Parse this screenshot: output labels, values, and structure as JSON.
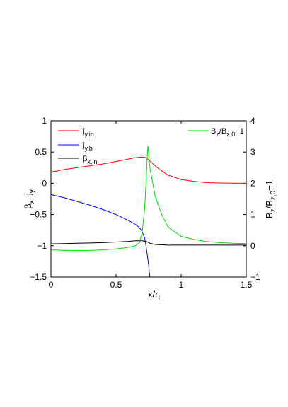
{
  "chart_data": {
    "type": "line",
    "xlabel": {
      "main": "x/r",
      "sub": "L"
    },
    "ylabel_left": {
      "b": "β",
      "bsub": "x",
      "sep": ", j",
      "jsub": "y"
    },
    "ylabel_right": {
      "b1": "B",
      "s1": "z",
      "slash": "/B",
      "s2": "z,0",
      "tail": "−1"
    },
    "xlim": [
      0,
      1.5
    ],
    "ylim_left": [
      -1.5,
      1
    ],
    "ylim_right": [
      -1,
      4
    ],
    "x_ticks": [
      "0",
      "0.5",
      "1",
      "1.5"
    ],
    "y_ticks_left": [
      "−1.5",
      "−1",
      "−0.5",
      "0",
      "0.5",
      "1"
    ],
    "y_ticks_right": [
      "−1",
      "0",
      "1",
      "2",
      "3",
      "4"
    ],
    "legend_left": [
      {
        "base": "j",
        "sub": "y,in",
        "color": "#ff0000"
      },
      {
        "base": "j",
        "sub": "y,b",
        "color": "#0000ff"
      },
      {
        "base": "β",
        "sub": "x,in",
        "color": "#000000"
      }
    ],
    "legend_right": {
      "b1": "B",
      "s1": "z",
      "slash": "/B",
      "s2": "z,0",
      "tail": "−1",
      "color": "#00dd00"
    },
    "series": [
      {
        "name": "j_y,in",
        "axis": "left",
        "color": "#ff0000",
        "x": [
          0,
          0.1,
          0.2,
          0.3,
          0.4,
          0.5,
          0.6,
          0.65,
          0.7,
          0.73,
          0.76,
          0.8,
          0.85,
          0.9,
          1.0,
          1.1,
          1.2,
          1.3,
          1.4,
          1.5
        ],
        "y": [
          0.18,
          0.22,
          0.25,
          0.28,
          0.31,
          0.35,
          0.39,
          0.41,
          0.42,
          0.41,
          0.36,
          0.28,
          0.2,
          0.13,
          0.06,
          0.03,
          0.01,
          0.005,
          0.002,
          0.0
        ]
      },
      {
        "name": "j_y,b",
        "axis": "left",
        "color": "#0000ff",
        "x": [
          0,
          0.1,
          0.2,
          0.3,
          0.4,
          0.5,
          0.55,
          0.6,
          0.65,
          0.68,
          0.7,
          0.72,
          0.73,
          0.74,
          0.75,
          0.755,
          0.76
        ],
        "y": [
          -0.18,
          -0.23,
          -0.29,
          -0.35,
          -0.42,
          -0.5,
          -0.55,
          -0.6,
          -0.66,
          -0.71,
          -0.77,
          -0.88,
          -1.0,
          -1.15,
          -1.3,
          -1.42,
          -1.5
        ]
      },
      {
        "name": "β_x,in",
        "axis": "left",
        "color": "#000000",
        "x": [
          0,
          0.1,
          0.2,
          0.3,
          0.4,
          0.5,
          0.6,
          0.65,
          0.7,
          0.73,
          0.76,
          0.8,
          0.9,
          1.0,
          1.2,
          1.5
        ],
        "y": [
          -0.97,
          -0.965,
          -0.96,
          -0.955,
          -0.95,
          -0.94,
          -0.93,
          -0.92,
          -0.92,
          -0.93,
          -0.96,
          -0.98,
          -0.99,
          -0.99,
          -0.99,
          -0.99
        ]
      },
      {
        "name": "B_z/B_z,0−1",
        "axis": "right",
        "color": "#00dd00",
        "x": [
          0,
          0.1,
          0.2,
          0.3,
          0.4,
          0.5,
          0.6,
          0.65,
          0.68,
          0.7,
          0.72,
          0.73,
          0.74,
          0.745,
          0.75,
          0.76,
          0.8,
          0.85,
          0.9,
          1.0,
          1.1,
          1.2,
          1.3,
          1.4,
          1.5
        ],
        "y": [
          -0.13,
          -0.15,
          -0.15,
          -0.15,
          -0.13,
          -0.1,
          -0.05,
          0.0,
          0.1,
          0.4,
          1.2,
          2.0,
          2.9,
          3.2,
          3.0,
          2.5,
          1.6,
          1.0,
          0.6,
          0.3,
          0.2,
          0.13,
          0.1,
          0.08,
          0.07
        ]
      }
    ]
  }
}
